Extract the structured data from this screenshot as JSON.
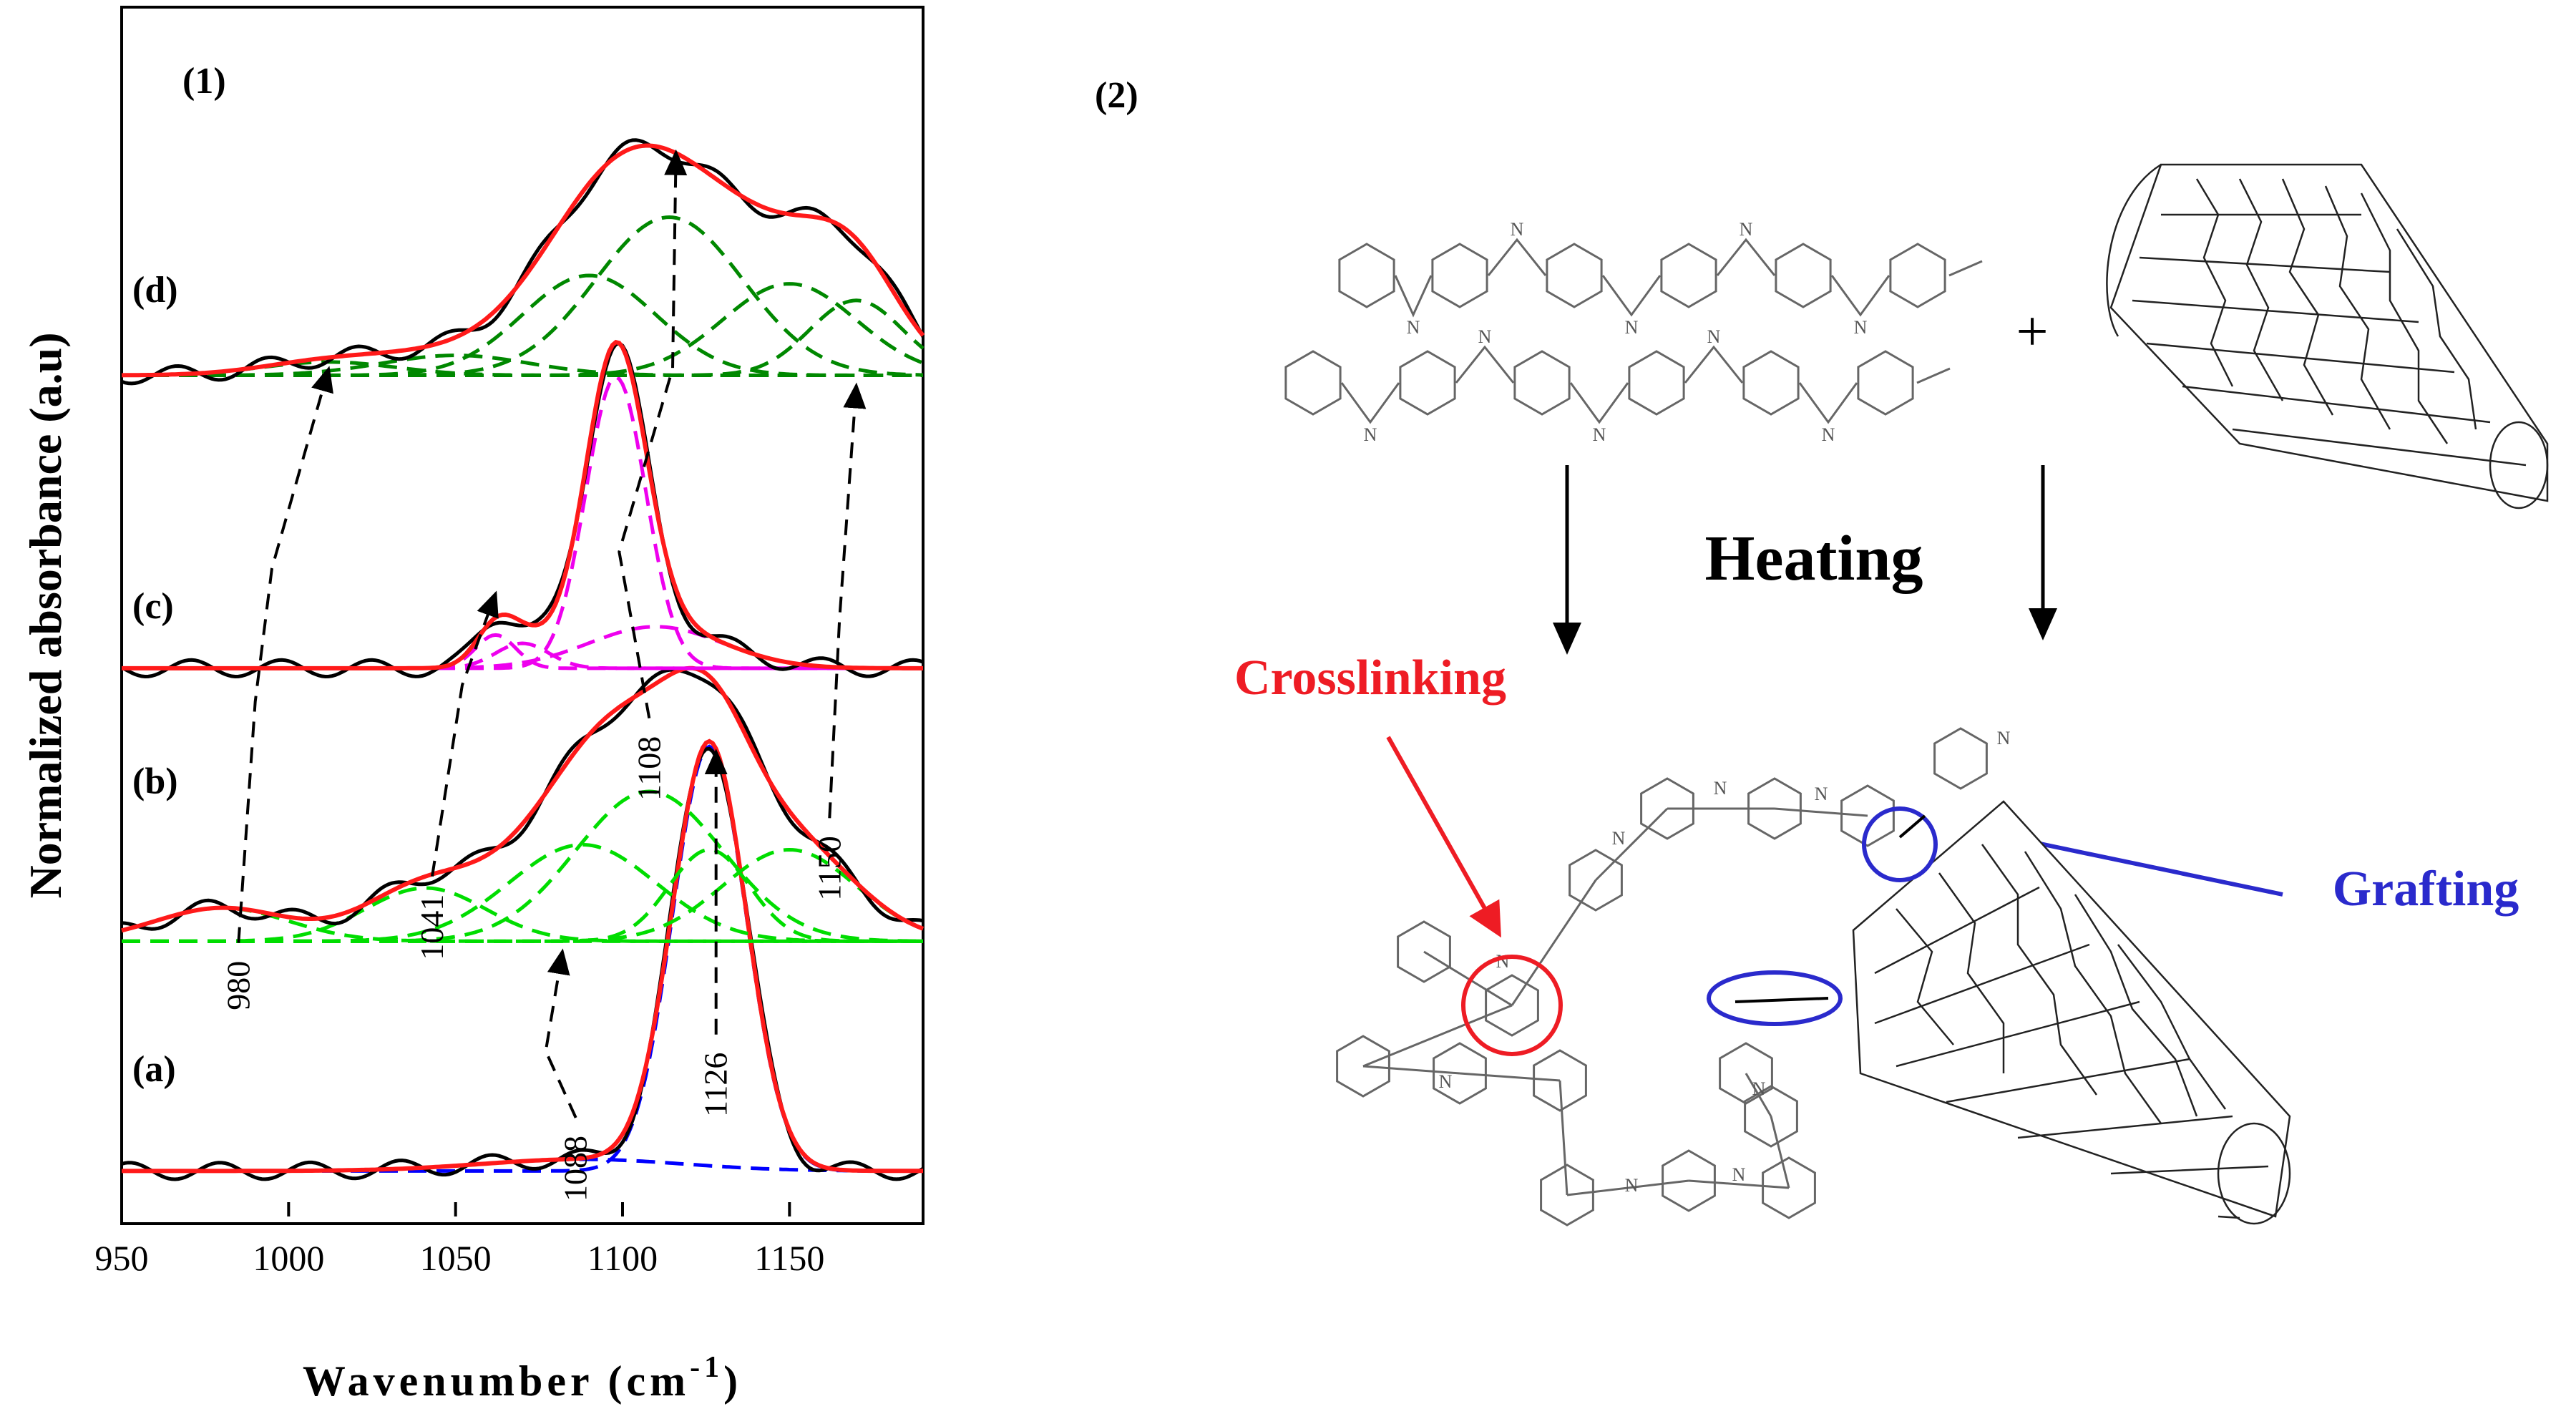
{
  "panel1_label": "(1)",
  "panel2_label": "(2)",
  "chart_data": {
    "type": "line",
    "xlabel": "Wavenumber (cm-1)",
    "xlabel_base": "Wavenumber (cm",
    "xlabel_sup": "-1",
    "xlabel_close": ")",
    "ylabel": "Normalized absorbance (a.u)",
    "xlim": [
      950,
      1190
    ],
    "ylim": [
      0,
      6.9
    ],
    "xticks": [
      950,
      1000,
      1050,
      1100,
      1150
    ],
    "grid": false,
    "spectra": [
      {
        "label": "(a)",
        "label_y": 0.62,
        "baseline": 0.0,
        "fit_color": "#0000ff",
        "peaks": [
          [
            1088,
            0.07,
            30
          ],
          [
            1126,
            2.55,
            11
          ]
        ]
      },
      {
        "label": "(b)",
        "label_y": 2.35,
        "baseline": 1.38,
        "fit_color": "#00dd00",
        "peaks": [
          [
            980,
            0.2,
            20
          ],
          [
            1041,
            0.32,
            18
          ],
          [
            1088,
            0.58,
            22
          ],
          [
            1108,
            0.9,
            22
          ],
          [
            1126,
            0.55,
            12
          ],
          [
            1150,
            0.55,
            20
          ]
        ]
      },
      {
        "label": "(c)",
        "label_y": 3.4,
        "baseline": 3.02,
        "fit_color": "#ee00ee",
        "peaks": [
          [
            1062,
            0.2,
            6
          ],
          [
            1070,
            0.15,
            8
          ],
          [
            1098,
            1.75,
            9
          ],
          [
            1110,
            0.25,
            20
          ]
        ]
      },
      {
        "label": "(d)",
        "label_y": 5.3,
        "baseline": 4.78,
        "fit_color": "#008800",
        "peaks": [
          [
            1012,
            0.08,
            20
          ],
          [
            1050,
            0.12,
            22
          ],
          [
            1090,
            0.6,
            20
          ],
          [
            1114,
            0.95,
            22
          ],
          [
            1150,
            0.55,
            20
          ],
          [
            1170,
            0.45,
            14
          ]
        ]
      }
    ],
    "guide_lines": [
      {
        "label": "980",
        "points": [
          [
            985,
            1.45
          ],
          [
            990,
            2.9
          ],
          [
            995,
            3.7
          ],
          [
            1012,
            4.9
          ]
        ]
      },
      {
        "label": "1041",
        "points": [
          [
            1043,
            1.85
          ],
          [
            1052,
            3.0
          ],
          [
            1062,
            3.55
          ]
        ]
      },
      {
        "label": "1088",
        "points": [
          [
            1086,
            0.4
          ],
          [
            1077,
            0.8
          ],
          [
            1082,
            1.4
          ]
        ]
      },
      {
        "label": "1108",
        "points": [
          [
            1108,
            2.8
          ],
          [
            1099,
            3.8
          ],
          [
            1115,
            4.9
          ],
          [
            1116,
            6.2
          ]
        ]
      },
      {
        "label": "1126",
        "points": [
          [
            1128,
            0.9
          ],
          [
            1128,
            2.6
          ]
        ]
      },
      {
        "label": "1150",
        "points": [
          [
            1162,
            2.2
          ],
          [
            1165,
            3.4
          ],
          [
            1170,
            4.8
          ]
        ]
      }
    ]
  },
  "scheme": {
    "plus_sign": "+",
    "heating_label": "Heating",
    "crosslinking_label": "Crosslinking",
    "grafting_label": "Grafting",
    "atom_label": "N",
    "crosslink_color": "#ee1c24",
    "graft_color": "#2a2acc"
  }
}
